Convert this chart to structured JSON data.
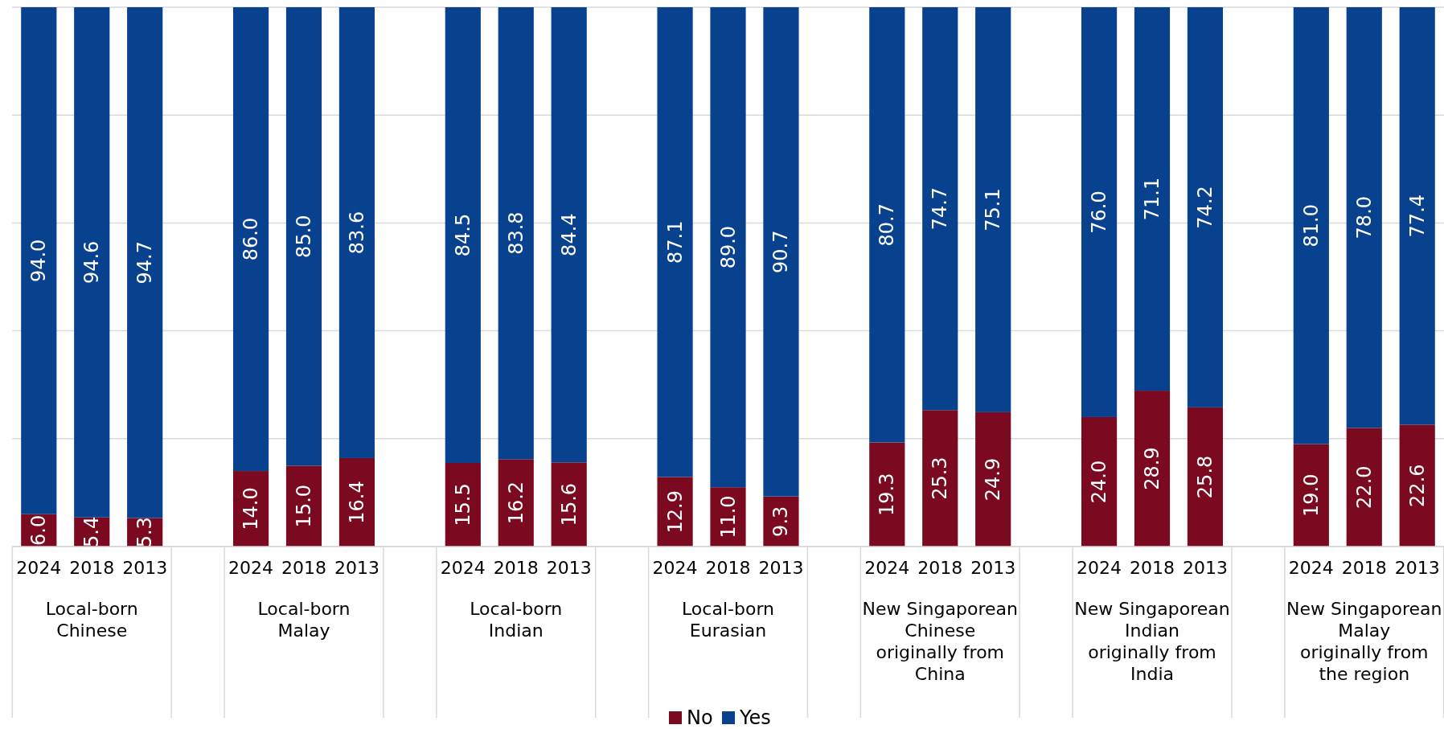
{
  "chart_data": {
    "type": "bar",
    "stacked": true,
    "categories": [
      "2024",
      "2018",
      "2013",
      null,
      "2024",
      "2018",
      "2013",
      null,
      "2024",
      "2018",
      "2013",
      null,
      "2024",
      "2018",
      "2013",
      null,
      "2024",
      "2018",
      "2013",
      null,
      "2024",
      "2018",
      "2013",
      null,
      "2024",
      "2018",
      "2013"
    ],
    "series": [
      {
        "name": "No",
        "color": "#7b0a20",
        "values": [
          6.0,
          5.4,
          5.3,
          null,
          14.0,
          15.0,
          16.4,
          null,
          15.5,
          16.2,
          15.6,
          null,
          12.9,
          11.0,
          9.3,
          null,
          19.3,
          25.3,
          24.9,
          null,
          24.0,
          28.9,
          25.8,
          null,
          19.0,
          22.0,
          22.6
        ],
        "value_labels": [
          "6.0",
          "5.4",
          "5.3",
          null,
          "14.0",
          "15.0",
          "16.4",
          null,
          "15.5",
          "16.2",
          "15.6",
          null,
          "12.9",
          "11.0",
          "9.3",
          null,
          "19.3",
          "25.3",
          "24.9",
          null,
          "24.0",
          "28.9",
          "25.8",
          null,
          "19.0",
          "22.0",
          "22.6"
        ]
      },
      {
        "name": "Yes",
        "color": "#08428f",
        "values": [
          94.0,
          94.6,
          94.7,
          null,
          86.0,
          85.0,
          83.6,
          null,
          84.5,
          83.8,
          84.4,
          null,
          87.1,
          89.0,
          90.7,
          null,
          80.7,
          74.7,
          75.1,
          null,
          76.0,
          71.1,
          74.2,
          null,
          81.0,
          78.0,
          77.4
        ],
        "value_labels": [
          "94.0",
          "94.6",
          "94.7",
          null,
          "86.0",
          "85.0",
          "83.6",
          null,
          "84.5",
          "83.8",
          "84.4",
          null,
          "87.1",
          "89.0",
          "90.7",
          null,
          "80.7",
          "74.7",
          "75.1",
          null,
          "76.0",
          "71.1",
          "74.2",
          null,
          "81.0",
          "78.0",
          "77.4"
        ]
      }
    ],
    "ylim": [
      0,
      100
    ],
    "yticks": [
      {
        "value": 0,
        "label": null
      },
      {
        "value": 20,
        "label": null
      },
      {
        "value": 40,
        "label": null
      },
      {
        "value": 60,
        "label": null
      },
      {
        "value": 80,
        "label": null
      },
      {
        "value": 100,
        "label": null
      }
    ],
    "grid": "y",
    "tick_labels": "x",
    "legend": "bottom",
    "annotations": [
      "Local-born Chinese",
      "Local-born Malay",
      "Local-born Indian",
      "Local-born Eurasian",
      "New Singaporean Chinese originally from China",
      "New Singaporean Indian originally from India",
      "New Singaporean Malay originally from the region"
    ]
  }
}
